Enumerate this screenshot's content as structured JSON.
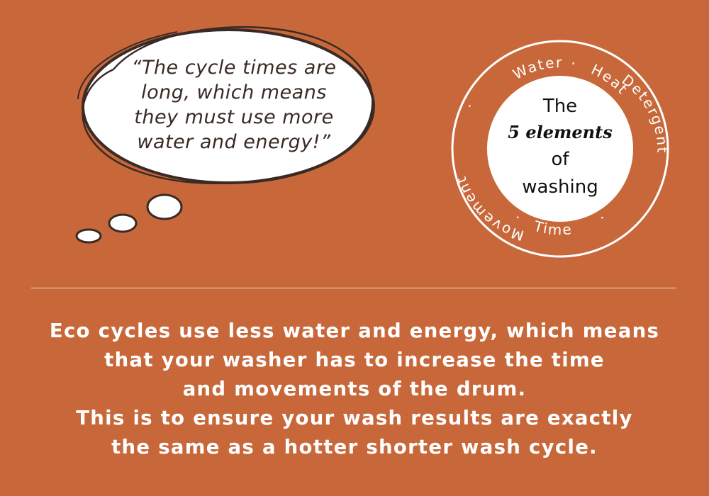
{
  "thought_bubble": {
    "lines": [
      "“The cycle times are",
      "long, which means",
      "they must use more",
      "water and energy!”"
    ]
  },
  "badge": {
    "center_lines": [
      "The",
      "5 elements",
      "of",
      "washing"
    ],
    "ring_top_words": [
      "Water",
      "Heat"
    ],
    "ring_right_word": "Detergent",
    "ring_bottom_word": "Time",
    "ring_left_word": "Movement"
  },
  "body": {
    "lines": [
      "Eco cycles use less water and energy, which means",
      "that your washer has to increase the time",
      "and movements of the drum.",
      "This is to ensure your wash results are exactly",
      "the same as a hotter shorter wash cycle."
    ]
  },
  "colors": {
    "background": "#c8683a",
    "text_light": "#ffffff",
    "bubble_fill": "#ffffff",
    "bubble_outline": "#3a2a25"
  }
}
